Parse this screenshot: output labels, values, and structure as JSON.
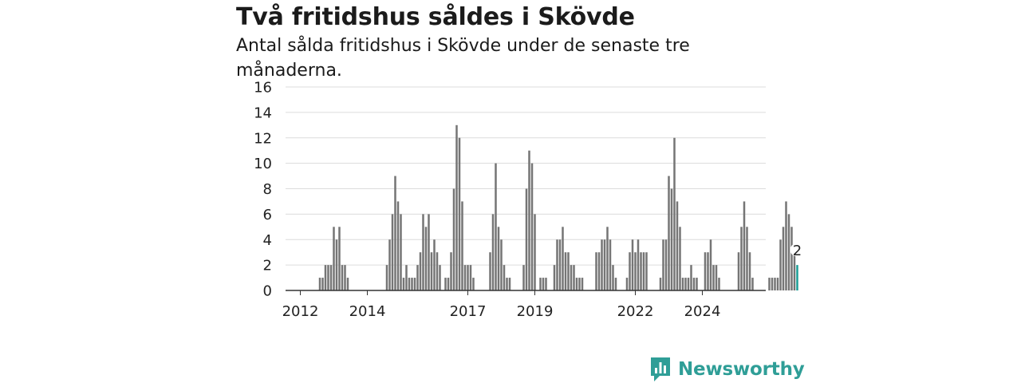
{
  "title": "Två fritidshus såldes i Skövde",
  "subtitle": "Antal sålda fritidshus i Skövde under de senaste tre månaderna.",
  "brand": {
    "name": "Newsworthy",
    "icon": "newsworthy-logo-icon",
    "color": "#2f9e97"
  },
  "colors": {
    "bar": "#757575",
    "highlight": "#1a9e96",
    "grid": "#dcdcdc",
    "axis": "#333333"
  },
  "chart_data": {
    "type": "bar",
    "title": "Två fritidshus såldes i Skövde",
    "subtitle": "Antal sålda fritidshus i Skövde under de senaste tre månaderna.",
    "xlabel": "",
    "ylabel": "",
    "ylim": [
      0,
      16
    ],
    "y_ticks": [
      0,
      2,
      4,
      6,
      8,
      10,
      12,
      14,
      16
    ],
    "x_tick_labels": [
      "2012",
      "2014",
      "2017",
      "2019",
      "2022",
      "2024"
    ],
    "grid": true,
    "start": "2012-01",
    "frequency": "monthly",
    "values": [
      0,
      0,
      0,
      0,
      0,
      0,
      0,
      1,
      1,
      2,
      2,
      2,
      5,
      4,
      5,
      2,
      2,
      1,
      0,
      0,
      0,
      0,
      0,
      0,
      0,
      0,
      0,
      0,
      0,
      0,
      0,
      2,
      4,
      6,
      9,
      7,
      6,
      1,
      2,
      1,
      1,
      1,
      2,
      3,
      6,
      5,
      6,
      3,
      4,
      3,
      2,
      0,
      1,
      1,
      3,
      8,
      13,
      12,
      7,
      2,
      2,
      2,
      1,
      0,
      0,
      0,
      0,
      0,
      3,
      6,
      10,
      5,
      4,
      2,
      1,
      1,
      0,
      0,
      0,
      0,
      2,
      8,
      11,
      10,
      6,
      0,
      1,
      1,
      1,
      0,
      0,
      2,
      4,
      4,
      5,
      3,
      3,
      2,
      2,
      1,
      1,
      1,
      0,
      0,
      0,
      0,
      3,
      3,
      4,
      4,
      5,
      4,
      2,
      1,
      0,
      0,
      0,
      1,
      3,
      4,
      3,
      4,
      3,
      3,
      3,
      0,
      0,
      0,
      0,
      1,
      4,
      4,
      9,
      8,
      12,
      7,
      5,
      1,
      1,
      1,
      2,
      1,
      1,
      0,
      0,
      3,
      3,
      4,
      2,
      2,
      1,
      0,
      0,
      0,
      0,
      0,
      0,
      3,
      5,
      7,
      5,
      3,
      1,
      0,
      0,
      0,
      0,
      0,
      1,
      1,
      1,
      1,
      4,
      5,
      7,
      6,
      5,
      3,
      2
    ],
    "highlight_last": true,
    "annotations": [
      {
        "label": "2",
        "target": "last"
      }
    ]
  }
}
